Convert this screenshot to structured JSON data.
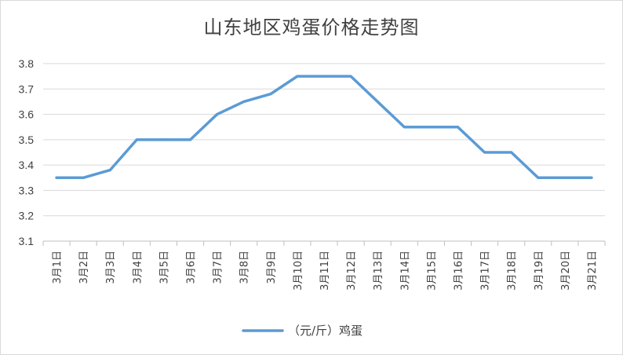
{
  "chart_data": {
    "type": "line",
    "title": "山东地区鸡蛋价格走势图",
    "categories": [
      "3月1日",
      "3月2日",
      "3月3日",
      "3月4日",
      "3月5日",
      "3月6日",
      "3月7日",
      "3月8日",
      "3月9日",
      "3月10日",
      "3月11日",
      "3月12日",
      "3月13日",
      "3月14日",
      "3月15日",
      "3月16日",
      "3月17日",
      "3月18日",
      "3月19日",
      "3月20日",
      "3月21日"
    ],
    "series": [
      {
        "name": "（元/斤）鸡蛋",
        "values": [
          3.35,
          3.35,
          3.38,
          3.5,
          3.5,
          3.5,
          3.6,
          3.65,
          3.68,
          3.75,
          3.75,
          3.75,
          3.65,
          3.55,
          3.55,
          3.55,
          3.45,
          3.45,
          3.35,
          3.35,
          3.35
        ]
      }
    ],
    "yticks": [
      "3.1",
      "3.2",
      "3.3",
      "3.4",
      "3.5",
      "3.6",
      "3.7",
      "3.8"
    ],
    "ylim": [
      3.1,
      3.8
    ],
    "grid": true,
    "legend": "bottom",
    "line_color": "#5b9bd5",
    "grid_color": "#d9d9d9"
  }
}
